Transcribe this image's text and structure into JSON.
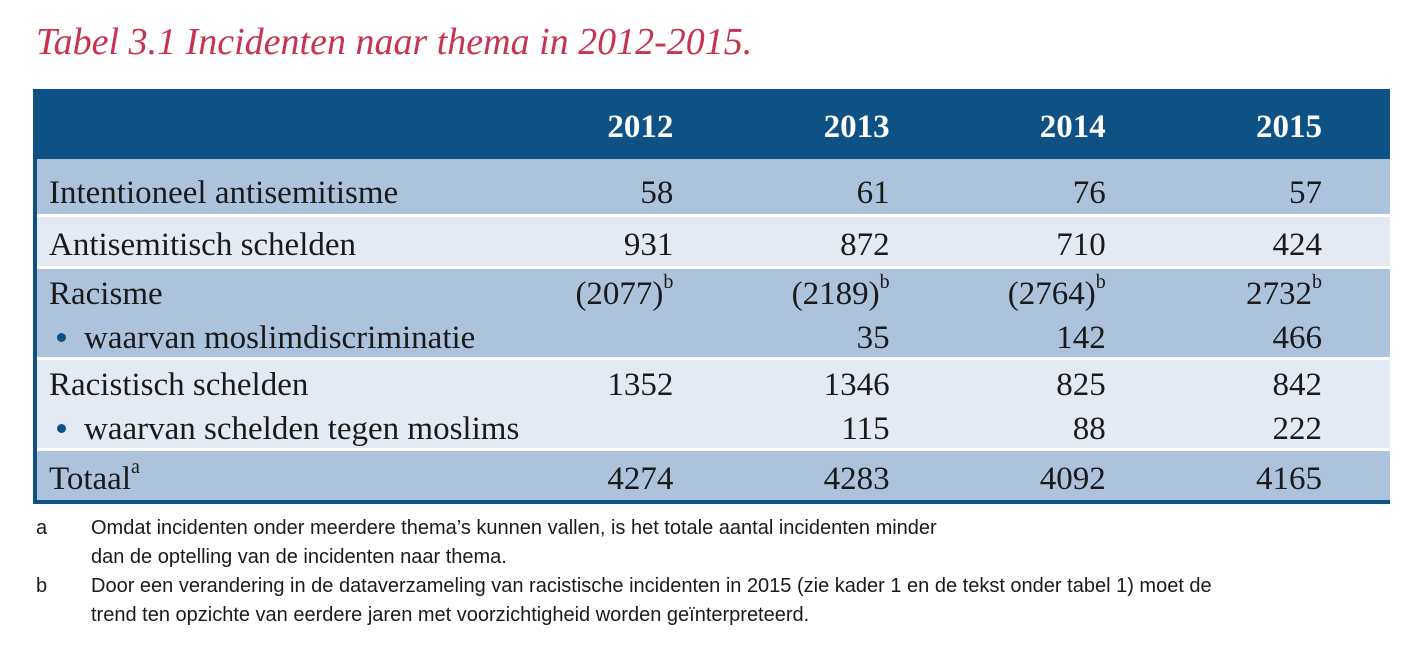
{
  "title": "Tabel 3.1 Incidenten naar thema in 2012-2015.",
  "table": {
    "headers": [
      "2012",
      "2013",
      "2014",
      "2015"
    ],
    "rows": [
      {
        "label": "Intentioneel antisemitisme",
        "values": [
          "58",
          "61",
          "76",
          "57"
        ]
      },
      {
        "label": "Antisemitisch schelden",
        "values": [
          "931",
          "872",
          "710",
          "424"
        ]
      },
      {
        "label": "Racisme",
        "values": [
          "(2077)",
          "(2189)",
          "(2764)",
          "2732"
        ],
        "value_sup": "b",
        "sub_label": "waarvan moslimdiscriminatie",
        "sub_values": [
          "",
          "35",
          "142",
          "466"
        ]
      },
      {
        "label": "Racistisch schelden",
        "values": [
          "1352",
          "1346",
          "825",
          "842"
        ],
        "sub_label": "waarvan schelden tegen moslims",
        "sub_values": [
          "",
          "115",
          "88",
          "222"
        ]
      },
      {
        "label": "Totaal",
        "label_sup": "a",
        "values": [
          "4274",
          "4283",
          "4092",
          "4165"
        ]
      }
    ]
  },
  "footnotes": [
    {
      "key": "a",
      "text": "Omdat incidenten onder meerdere thema’s kunnen vallen, is het totale aantal incidenten minder dan de optelling van de incidenten naar thema."
    },
    {
      "key": "b",
      "text": "Door een verandering in de dataverzameling van racistische incidenten in 2015 (zie kader 1 en de tekst onder tabel 1) moet de trend ten opzichte van eerdere jaren met voorzichtigheid worden geïnterpreteerd."
    }
  ],
  "colors": {
    "title": "#c8344f",
    "header_bg": "#0e5185",
    "row_dark": "#adc3dc",
    "row_light": "#e4eaf4",
    "bullet": "#0e5185"
  }
}
